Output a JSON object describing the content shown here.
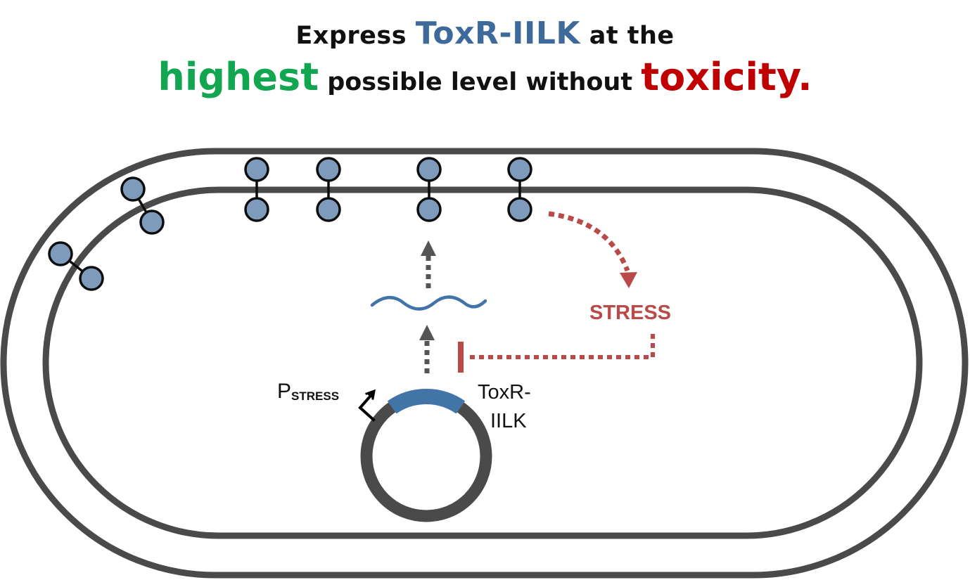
{
  "title": {
    "line1": {
      "prefix": "Express ",
      "highlight": "ToxR-IILK",
      "suffix": " at the"
    },
    "line2": {
      "highlight_start": "highest",
      "middle": " possible level without ",
      "highlight_end": "toxicity."
    }
  },
  "labels": {
    "promoter_main": "P",
    "promoter_sub": "STRESS",
    "gene_line1": "ToxR-",
    "gene_line2": "IILK",
    "stress": "STRESS"
  },
  "colors": {
    "text": "#111111",
    "toxr": "#3d6a9a",
    "highest": "#12a650",
    "toxicity": "#c00000",
    "membrane": "#4a4a4a",
    "protein_fill": "#7e9bbc",
    "protein_stroke": "#0d0d0d",
    "gene": "#4274a8",
    "mrna": "#4274a8",
    "arrow_gray": "#555555",
    "stress": "#b94a48"
  },
  "icons": {
    "promoter": "bent-arrow-icon",
    "plasmid": "circular-plasmid-icon",
    "mrna": "wavy-mrna-icon",
    "protein": "dimer-protein-icon",
    "inhibition": "t-bar-inhibition-icon"
  }
}
